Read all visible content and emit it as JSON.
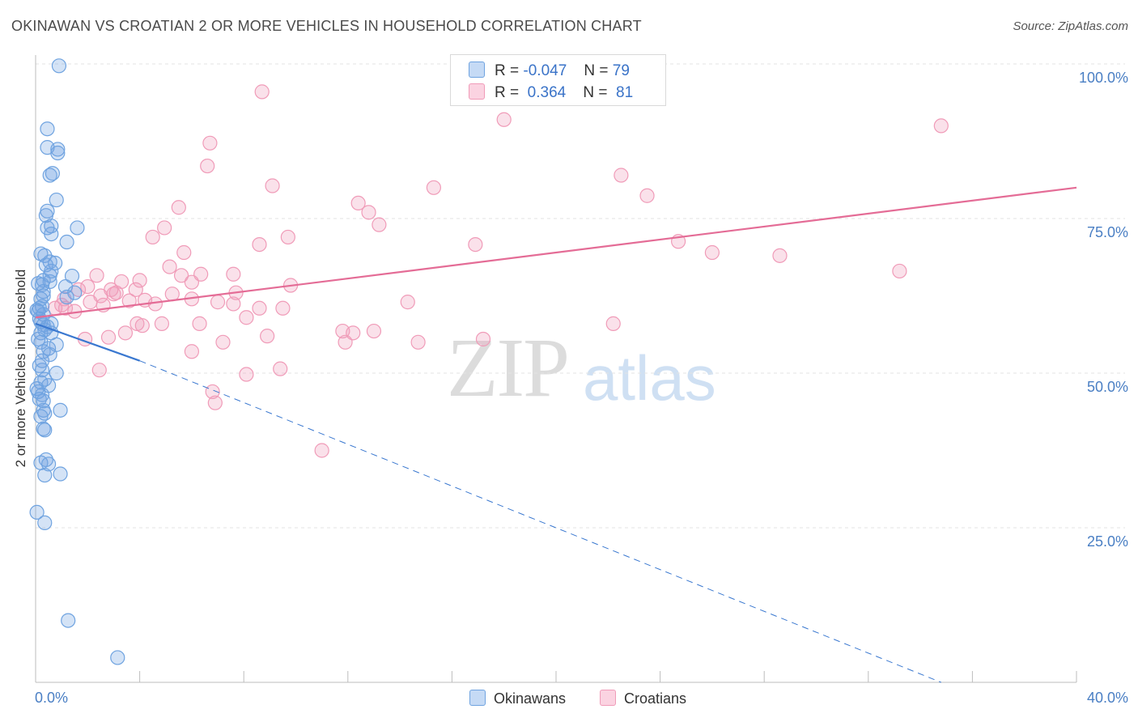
{
  "title": "OKINAWAN VS CROATIAN 2 OR MORE VEHICLES IN HOUSEHOLD CORRELATION CHART",
  "source": "Source: ZipAtlas.com",
  "watermark": {
    "zip": "ZIP",
    "atlas": "atlas"
  },
  "legend_top": {
    "rows": [
      {
        "r_label": "R =",
        "r_value": "-0.047",
        "n_label": "N =",
        "n_value": "79",
        "color": "#6fa3e0"
      },
      {
        "r_label": "R =",
        "r_value": " 0.364",
        "n_label": "N =",
        "n_value": "81",
        "color": "#f09bb8"
      }
    ]
  },
  "chart_data": {
    "type": "scatter",
    "title": "OKINAWAN VS CROATIAN 2 OR MORE VEHICLES IN HOUSEHOLD CORRELATION CHART",
    "xlabel": "",
    "ylabel": "2 or more Vehicles in Household",
    "xlim": [
      0,
      40
    ],
    "ylim": [
      0,
      100
    ],
    "x_tick_labels": [
      "0.0%",
      "40.0%"
    ],
    "y_tick_labels": [
      "100.0%",
      "75.0%",
      "50.0%",
      "25.0%"
    ],
    "y_ticks": [
      100,
      75,
      50,
      25
    ],
    "grid": true,
    "legend_position": "bottom-center",
    "series": [
      {
        "name": "Okinawans",
        "color": "#6fa3e0",
        "r": -0.047,
        "n": 79,
        "trend": {
          "x_start": 0,
          "y_start": 58.0,
          "x_end": 4.0,
          "y_end": 52.0,
          "dashed_to_x": 34.8,
          "dashed_to_y": 0.0
        },
        "points": [
          [
            0.9,
            99.7
          ],
          [
            0.45,
            89.5
          ],
          [
            0.45,
            86.5
          ],
          [
            0.85,
            86.2
          ],
          [
            0.85,
            85.6
          ],
          [
            0.65,
            82.3
          ],
          [
            0.55,
            82.0
          ],
          [
            0.8,
            78.0
          ],
          [
            0.45,
            76.2
          ],
          [
            0.4,
            75.5
          ],
          [
            0.6,
            73.8
          ],
          [
            0.45,
            73.5
          ],
          [
            1.6,
            73.5
          ],
          [
            0.6,
            72.5
          ],
          [
            1.2,
            71.2
          ],
          [
            0.2,
            69.3
          ],
          [
            0.35,
            69.0
          ],
          [
            0.55,
            68.0
          ],
          [
            0.75,
            67.8
          ],
          [
            0.4,
            67.5
          ],
          [
            0.55,
            65.8
          ],
          [
            1.4,
            65.7
          ],
          [
            0.3,
            65.0
          ],
          [
            0.1,
            64.5
          ],
          [
            0.55,
            64.8
          ],
          [
            0.25,
            64.3
          ],
          [
            1.15,
            64.0
          ],
          [
            0.3,
            63.2
          ],
          [
            0.2,
            62.0
          ],
          [
            1.5,
            63.0
          ],
          [
            1.2,
            62.3
          ],
          [
            0.25,
            60.8
          ],
          [
            0.05,
            60.2
          ],
          [
            0.15,
            60.5
          ],
          [
            0.3,
            59.5
          ],
          [
            0.2,
            58.3
          ],
          [
            0.6,
            58.0
          ],
          [
            0.3,
            57.8
          ],
          [
            0.45,
            57.5
          ],
          [
            0.35,
            57.0
          ],
          [
            0.2,
            56.5
          ],
          [
            0.6,
            56.5
          ],
          [
            0.1,
            55.5
          ],
          [
            0.2,
            55.0
          ],
          [
            0.8,
            54.6
          ],
          [
            0.5,
            54.0
          ],
          [
            0.3,
            53.5
          ],
          [
            0.55,
            53.0
          ],
          [
            0.15,
            51.2
          ],
          [
            0.25,
            50.5
          ],
          [
            0.8,
            50.0
          ],
          [
            0.35,
            49.0
          ],
          [
            0.2,
            48.5
          ],
          [
            0.05,
            47.5
          ],
          [
            0.1,
            47.0
          ],
          [
            0.25,
            46.5
          ],
          [
            0.15,
            45.8
          ],
          [
            0.3,
            45.5
          ],
          [
            0.3,
            44.0
          ],
          [
            0.95,
            44.0
          ],
          [
            0.35,
            43.5
          ],
          [
            0.2,
            43.0
          ],
          [
            0.3,
            41.0
          ],
          [
            0.35,
            40.8
          ],
          [
            0.4,
            36.0
          ],
          [
            0.2,
            35.5
          ],
          [
            0.5,
            35.3
          ],
          [
            0.35,
            33.5
          ],
          [
            0.95,
            33.7
          ],
          [
            0.05,
            27.5
          ],
          [
            0.35,
            25.8
          ],
          [
            1.25,
            10.0
          ],
          [
            3.15,
            4.0
          ],
          [
            0.1,
            60.0
          ],
          [
            0.3,
            62.5
          ],
          [
            0.6,
            66.5
          ],
          [
            0.25,
            52.0
          ],
          [
            0.5,
            48.0
          ],
          [
            0.15,
            58.8
          ]
        ]
      },
      {
        "name": "Croatians",
        "color": "#f09bb8",
        "r": 0.364,
        "n": 81,
        "trend": {
          "x_start": 0,
          "y_start": 59.0,
          "x_end": 40.0,
          "y_end": 80.0
        },
        "points": [
          [
            8.7,
            95.5
          ],
          [
            18.0,
            91.0
          ],
          [
            34.8,
            90.0
          ],
          [
            6.7,
            87.2
          ],
          [
            6.6,
            83.5
          ],
          [
            22.5,
            82.0
          ],
          [
            9.1,
            80.3
          ],
          [
            15.3,
            80.0
          ],
          [
            23.5,
            78.7
          ],
          [
            12.4,
            77.5
          ],
          [
            5.5,
            76.8
          ],
          [
            12.8,
            76.0
          ],
          [
            13.2,
            74.0
          ],
          [
            4.95,
            73.5
          ],
          [
            4.5,
            72.0
          ],
          [
            9.7,
            72.0
          ],
          [
            24.7,
            71.3
          ],
          [
            8.6,
            70.8
          ],
          [
            16.9,
            70.8
          ],
          [
            5.7,
            69.5
          ],
          [
            26.0,
            69.5
          ],
          [
            28.6,
            69.0
          ],
          [
            5.15,
            67.2
          ],
          [
            33.2,
            66.5
          ],
          [
            2.35,
            65.8
          ],
          [
            5.6,
            65.8
          ],
          [
            6.35,
            66.0
          ],
          [
            7.6,
            66.0
          ],
          [
            6.0,
            64.7
          ],
          [
            3.3,
            64.8
          ],
          [
            9.8,
            64.2
          ],
          [
            1.65,
            63.5
          ],
          [
            2.9,
            63.5
          ],
          [
            3.85,
            63.5
          ],
          [
            3.0,
            62.8
          ],
          [
            5.25,
            62.8
          ],
          [
            7.7,
            63.0
          ],
          [
            1.1,
            62.0
          ],
          [
            2.1,
            61.5
          ],
          [
            3.6,
            61.7
          ],
          [
            4.2,
            61.8
          ],
          [
            7.0,
            61.5
          ],
          [
            14.3,
            61.5
          ],
          [
            7.6,
            61.2
          ],
          [
            2.6,
            61.0
          ],
          [
            4.6,
            61.2
          ],
          [
            1.15,
            60.5
          ],
          [
            0.75,
            60.5
          ],
          [
            8.6,
            60.5
          ],
          [
            9.5,
            60.5
          ],
          [
            1.5,
            60.0
          ],
          [
            8.1,
            59.0
          ],
          [
            3.9,
            58.0
          ],
          [
            4.85,
            58.0
          ],
          [
            6.3,
            58.0
          ],
          [
            22.2,
            58.0
          ],
          [
            4.1,
            57.7
          ],
          [
            11.8,
            56.8
          ],
          [
            12.2,
            56.5
          ],
          [
            13.0,
            56.8
          ],
          [
            3.45,
            56.5
          ],
          [
            2.8,
            55.8
          ],
          [
            8.9,
            56.0
          ],
          [
            17.2,
            55.5
          ],
          [
            1.9,
            55.5
          ],
          [
            7.2,
            55.0
          ],
          [
            11.9,
            55.0
          ],
          [
            14.7,
            55.0
          ],
          [
            6.0,
            53.5
          ],
          [
            2.45,
            50.5
          ],
          [
            9.4,
            50.7
          ],
          [
            8.1,
            49.8
          ],
          [
            6.8,
            47.0
          ],
          [
            6.9,
            45.2
          ],
          [
            11.0,
            37.5
          ],
          [
            1.0,
            61.0
          ],
          [
            3.1,
            63.0
          ],
          [
            6.0,
            62.0
          ],
          [
            2.0,
            64.0
          ],
          [
            4.0,
            65.0
          ],
          [
            2.5,
            62.5
          ]
        ]
      }
    ]
  },
  "bottom_legend": [
    {
      "label": "Okinawans",
      "color": "#6fa3e0"
    },
    {
      "label": "Croatians",
      "color": "#f09bb8"
    }
  ]
}
